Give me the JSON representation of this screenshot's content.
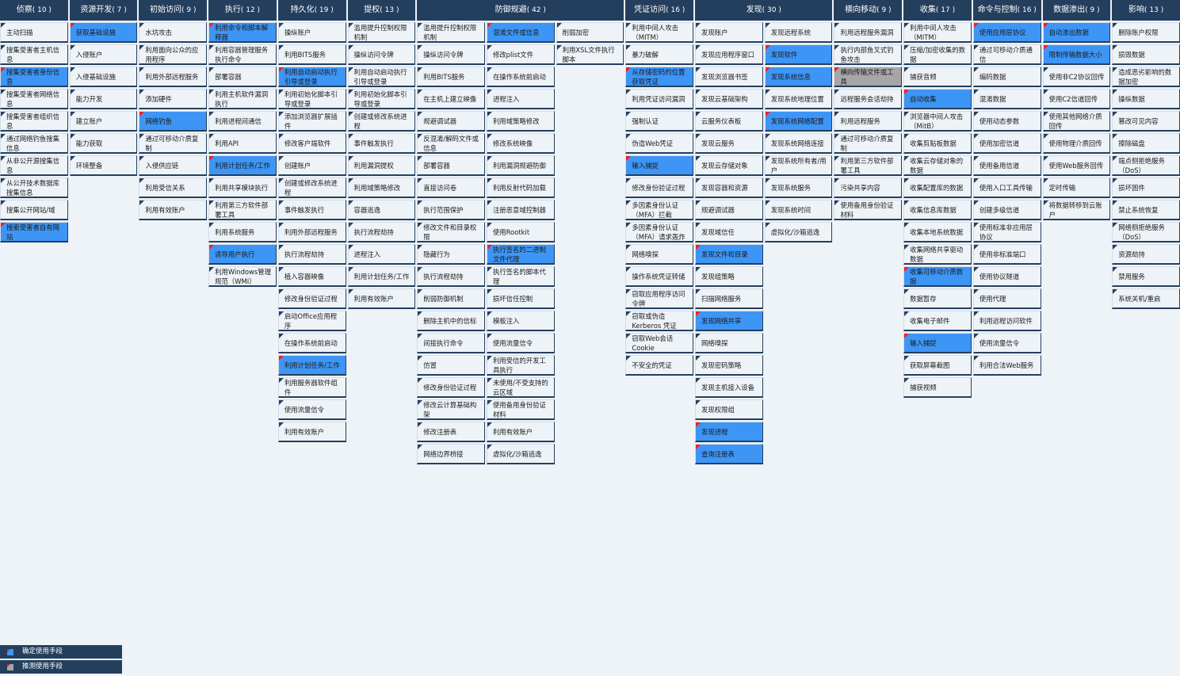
{
  "colors": {
    "header": "#243f5e",
    "confirmed": "#3d95f5",
    "suspected": "#a6a6a6",
    "marker": "#ff1a1a",
    "cell": "#eef3f8"
  },
  "tactics": [
    {
      "name": "侦察",
      "count": "( 10 )",
      "columns": [
        [
          {
            "label": "主动扫描"
          },
          {
            "label": "搜集受害者主机信息"
          },
          {
            "label": "搜集受害者身份信息",
            "state": "confirmed"
          },
          {
            "label": "搜集受害者网络信息"
          },
          {
            "label": "搜集受害者组织信息"
          },
          {
            "label": "通过网络钓鱼搜集信息"
          },
          {
            "label": "从非公开源搜集信息"
          },
          {
            "label": "从公开技术数据库搜集信息"
          },
          {
            "label": "搜集公开网站/域"
          },
          {
            "label": "搜索受害者自有网站",
            "state": "confirmed"
          }
        ]
      ]
    },
    {
      "name": "资源开发",
      "count": "( 7 )",
      "columns": [
        [
          {
            "label": "获取基础设施",
            "state": "confirmed"
          },
          {
            "label": "入侵账户"
          },
          {
            "label": "入侵基础设施"
          },
          {
            "label": "能力开发"
          },
          {
            "label": "建立账户"
          },
          {
            "label": "能力获取"
          },
          {
            "label": "环境整备"
          }
        ]
      ]
    },
    {
      "name": "初始访问",
      "count": "( 9 )",
      "columns": [
        [
          {
            "label": "水坑攻击"
          },
          {
            "label": "利用面向公众的应用程序"
          },
          {
            "label": "利用外部远程服务"
          },
          {
            "label": "添加硬件"
          },
          {
            "label": "网络钓鱼",
            "state": "confirmed"
          },
          {
            "label": "通过可移动介质复制"
          },
          {
            "label": "入侵供应链"
          },
          {
            "label": "利用受信关系"
          },
          {
            "label": "利用有效账户"
          }
        ]
      ]
    },
    {
      "name": "执行",
      "count": "( 12 )",
      "columns": [
        [
          {
            "label": "利用命令和脚本解释器",
            "state": "confirmed"
          },
          {
            "label": "利用容器管理服务执行命令"
          },
          {
            "label": "部署容器"
          },
          {
            "label": "利用主机软件漏洞执行"
          },
          {
            "label": "利用进程间通信"
          },
          {
            "label": "利用API"
          },
          {
            "label": "利用计划任务/工作",
            "state": "confirmed"
          },
          {
            "label": "利用共享模块执行"
          },
          {
            "label": "利用第三方软件部署工具"
          },
          {
            "label": "利用系统服务"
          },
          {
            "label": "诱导用户执行",
            "state": "confirmed"
          },
          {
            "label": "利用Windows管理规范（WMI）"
          }
        ]
      ]
    },
    {
      "name": "持久化",
      "count": "( 19 )",
      "columns": [
        [
          {
            "label": "操纵账户"
          },
          {
            "label": "利用BITS服务"
          },
          {
            "label": "利用自动启动执行引导或登录",
            "state": "confirmed"
          },
          {
            "label": "利用初始化脚本引导或登录"
          },
          {
            "label": "添加浏览器扩展插件"
          },
          {
            "label": "修改客户端软件"
          },
          {
            "label": "创建账户"
          },
          {
            "label": "创建或修改系统进程"
          },
          {
            "label": "事件触发执行"
          },
          {
            "label": "利用外部远程服务"
          },
          {
            "label": "执行流程劫持"
          },
          {
            "label": "植入容器映像"
          },
          {
            "label": "修改身份验证过程"
          },
          {
            "label": "启动Office应用程序"
          },
          {
            "label": "在操作系统前启动"
          },
          {
            "label": "利用计划任务/工作",
            "state": "confirmed"
          },
          {
            "label": "利用服务器软件组件"
          },
          {
            "label": "使用流量信令"
          },
          {
            "label": "利用有效账户"
          }
        ]
      ]
    },
    {
      "name": "提权",
      "count": "( 13 )",
      "columns": [
        [
          {
            "label": "滥用提升控制权限机制"
          },
          {
            "label": "操纵访问令牌"
          },
          {
            "label": "利用自动启动执行引导或登录"
          },
          {
            "label": "利用初始化脚本引导或登录"
          },
          {
            "label": "创建或修改系统进程"
          },
          {
            "label": "事件触发执行"
          },
          {
            "label": "利用漏洞提权"
          },
          {
            "label": "利用域策略修改"
          },
          {
            "label": "容器逃逸"
          },
          {
            "label": "执行流程劫持"
          },
          {
            "label": "进程注入"
          },
          {
            "label": "利用计划任务/工作"
          },
          {
            "label": "利用有效账户"
          }
        ]
      ]
    },
    {
      "name": "防御规避",
      "count": "( 42 )",
      "columns": [
        [
          {
            "label": "滥用提升控制权限机制"
          },
          {
            "label": "操纵访问令牌"
          },
          {
            "label": "利用BITS服务"
          },
          {
            "label": "在主机上建立映像"
          },
          {
            "label": "规避调试器"
          },
          {
            "label": "反混淆/解码文件或信息"
          },
          {
            "label": "部署容器"
          },
          {
            "label": "直接访问卷"
          },
          {
            "label": "执行范围保护"
          },
          {
            "label": "修改文件和目录权限"
          },
          {
            "label": "隐藏行为"
          },
          {
            "label": "执行流程劫持"
          },
          {
            "label": "削弱防御机制"
          },
          {
            "label": "删除主机中的信标"
          },
          {
            "label": "间接执行命令"
          },
          {
            "label": "仿冒"
          },
          {
            "label": "修改身份验证过程"
          },
          {
            "label": "修改云计算基础构架"
          },
          {
            "label": "修改注册表"
          },
          {
            "label": "网络边界桥接"
          }
        ],
        [
          {
            "label": "混淆文件或信息",
            "state": "confirmed"
          },
          {
            "label": "修改plist文件"
          },
          {
            "label": "在操作系统前启动"
          },
          {
            "label": "进程注入"
          },
          {
            "label": "利用域策略修改"
          },
          {
            "label": "修改系统映像"
          },
          {
            "label": "利用漏洞规避防御"
          },
          {
            "label": "利用反射代码加载"
          },
          {
            "label": "注册恶意域控制器"
          },
          {
            "label": "使用Rootkit"
          },
          {
            "label": "执行签名的二进制文件代理",
            "state": "confirmed"
          },
          {
            "label": "执行签名的脚本代理"
          },
          {
            "label": "损坏信任控制"
          },
          {
            "label": "模板注入"
          },
          {
            "label": "使用流量信令"
          },
          {
            "label": "利用受信的开发工具执行"
          },
          {
            "label": "未使用/不受支持的云区域"
          },
          {
            "label": "使用备用身份验证材料"
          },
          {
            "label": "利用有效账户"
          },
          {
            "label": "虚拟化/沙箱逃逸"
          }
        ],
        [
          {
            "label": "削弱加密"
          },
          {
            "label": "利用XSL文件执行脚本"
          }
        ]
      ]
    },
    {
      "name": "凭证访问",
      "count": "( 16 )",
      "columns": [
        [
          {
            "label": "利用中间人攻击（MITM）"
          },
          {
            "label": "暴力破解"
          },
          {
            "label": "从存储密码的位置获取凭证",
            "state": "confirmed"
          },
          {
            "label": "利用凭证访问漏洞"
          },
          {
            "label": "强制认证"
          },
          {
            "label": "伪造Web凭证"
          },
          {
            "label": "输入捕捉",
            "state": "confirmed"
          },
          {
            "label": "修改身份验证过程"
          },
          {
            "label": "多因素身份认证（MFA）拦截"
          },
          {
            "label": "多因素身份认证（MFA）请求轰炸"
          },
          {
            "label": "网络嗅探"
          },
          {
            "label": "操作系统凭证转储"
          },
          {
            "label": "窃取应用程序访问令牌"
          },
          {
            "label": "窃取或伪造Kerberos 凭证"
          },
          {
            "label": "窃取Web会话Cookie"
          },
          {
            "label": "不安全的凭证"
          }
        ]
      ]
    },
    {
      "name": "发现",
      "count": "( 30 )",
      "columns": [
        [
          {
            "label": "发现账户"
          },
          {
            "label": "发现应用程序窗口"
          },
          {
            "label": "发现浏览器书签"
          },
          {
            "label": "发现云基础架构"
          },
          {
            "label": "云服务仪表板"
          },
          {
            "label": "发现云服务"
          },
          {
            "label": "发现云存储对象"
          },
          {
            "label": "发现容器和资源"
          },
          {
            "label": "规避调试器"
          },
          {
            "label": "发现域信任"
          },
          {
            "label": "发现文件和目录",
            "state": "confirmed"
          },
          {
            "label": "发现组策略"
          },
          {
            "label": "扫描网络服务"
          },
          {
            "label": "发现网络共享",
            "state": "confirmed"
          },
          {
            "label": "网络嗅探"
          },
          {
            "label": "发现密码策略"
          },
          {
            "label": "发现主机接入设备"
          },
          {
            "label": "发现权限组"
          },
          {
            "label": "发现进程",
            "state": "confirmed"
          },
          {
            "label": "查询注册表",
            "state": "confirmed"
          }
        ],
        [
          {
            "label": "发现远程系统"
          },
          {
            "label": "发现软件",
            "state": "confirmed"
          },
          {
            "label": "发现系统信息",
            "state": "confirmed"
          },
          {
            "label": "发现系统地理位置"
          },
          {
            "label": "发现系统网络配置",
            "state": "confirmed"
          },
          {
            "label": "发现系统网络连接"
          },
          {
            "label": "发现系统所有者/用户"
          },
          {
            "label": "发现系统服务"
          },
          {
            "label": "发现系统时间"
          },
          {
            "label": "虚拟化/沙箱逃逸"
          }
        ]
      ]
    },
    {
      "name": "横向移动",
      "count": "( 9 )",
      "columns": [
        [
          {
            "label": "利用远程服务漏洞"
          },
          {
            "label": "执行内部鱼叉式钓鱼攻击"
          },
          {
            "label": "横向传输文件或工具",
            "state": "suspected"
          },
          {
            "label": "远程服务会话劫持"
          },
          {
            "label": "利用远程服务"
          },
          {
            "label": "通过可移动介质复制"
          },
          {
            "label": "利用第三方软件部署工具"
          },
          {
            "label": "污染共享内容"
          },
          {
            "label": "使用备用身份验证材料"
          }
        ]
      ]
    },
    {
      "name": "收集",
      "count": "( 17 )",
      "columns": [
        [
          {
            "label": "利用中间人攻击（MITM）"
          },
          {
            "label": "压缩/加密收集的数据"
          },
          {
            "label": "捕获音频"
          },
          {
            "label": "自动收集",
            "state": "confirmed"
          },
          {
            "label": "浏览器中间人攻击（MitB）"
          },
          {
            "label": "收集剪贴板数据"
          },
          {
            "label": "收集云存储对象的数据"
          },
          {
            "label": "收集配置库的数据"
          },
          {
            "label": "收集信息库数据"
          },
          {
            "label": "收集本地系统数据"
          },
          {
            "label": "收集网络共享驱动数据"
          },
          {
            "label": "收集可移动介质数据",
            "state": "confirmed"
          },
          {
            "label": "数据暂存"
          },
          {
            "label": "收集电子邮件"
          },
          {
            "label": "输入捕捉",
            "state": "confirmed"
          },
          {
            "label": "获取屏幕截图"
          },
          {
            "label": "捕获视频"
          }
        ]
      ]
    },
    {
      "name": "命令与控制",
      "count": "( 16 )",
      "columns": [
        [
          {
            "label": "使用应用层协议",
            "state": "confirmed"
          },
          {
            "label": "通过可移动介质通信"
          },
          {
            "label": "编码数据"
          },
          {
            "label": "混淆数据"
          },
          {
            "label": "使用动态参数"
          },
          {
            "label": "使用加密信道"
          },
          {
            "label": "使用备用信道"
          },
          {
            "label": "使用入口工具传输"
          },
          {
            "label": "创建多级信道"
          },
          {
            "label": "使用标准非应用层协议"
          },
          {
            "label": "使用非标准端口"
          },
          {
            "label": "使用协议隧道"
          },
          {
            "label": "使用代理"
          },
          {
            "label": "利用远程访问软件"
          },
          {
            "label": "使用流量信令"
          },
          {
            "label": "利用合法Web服务"
          }
        ]
      ]
    },
    {
      "name": "数据渗出",
      "count": "( 9 )",
      "columns": [
        [
          {
            "label": "自动渗出数据",
            "state": "confirmed"
          },
          {
            "label": "限制传输数据大小",
            "state": "confirmed"
          },
          {
            "label": "使用非C2协议回传"
          },
          {
            "label": "使用C2信道回传"
          },
          {
            "label": "使用其他网络介质回传"
          },
          {
            "label": "使用物理介质回传"
          },
          {
            "label": "使用Web服务回传"
          },
          {
            "label": "定时传输"
          },
          {
            "label": "将数据转移到云账户"
          }
        ]
      ]
    },
    {
      "name": "影响",
      "count": "( 13 )",
      "columns": [
        [
          {
            "label": "删除账户权限"
          },
          {
            "label": "损毁数据"
          },
          {
            "label": "造成恶劣影响的数据加密"
          },
          {
            "label": "操纵数据"
          },
          {
            "label": "篡改可见内容"
          },
          {
            "label": "擦除磁盘"
          },
          {
            "label": "端点侧拒绝服务（DoS）"
          },
          {
            "label": "损坏固件"
          },
          {
            "label": "禁止系统恢复"
          },
          {
            "label": "网络侧拒绝服务（DoS）"
          },
          {
            "label": "资源劫持"
          },
          {
            "label": "禁用服务"
          },
          {
            "label": "系统关机/重启"
          }
        ]
      ]
    }
  ],
  "legend": [
    {
      "label": "确定使用手段",
      "state": "confirmed"
    },
    {
      "label": "推测使用手段",
      "state": "suspected"
    }
  ]
}
